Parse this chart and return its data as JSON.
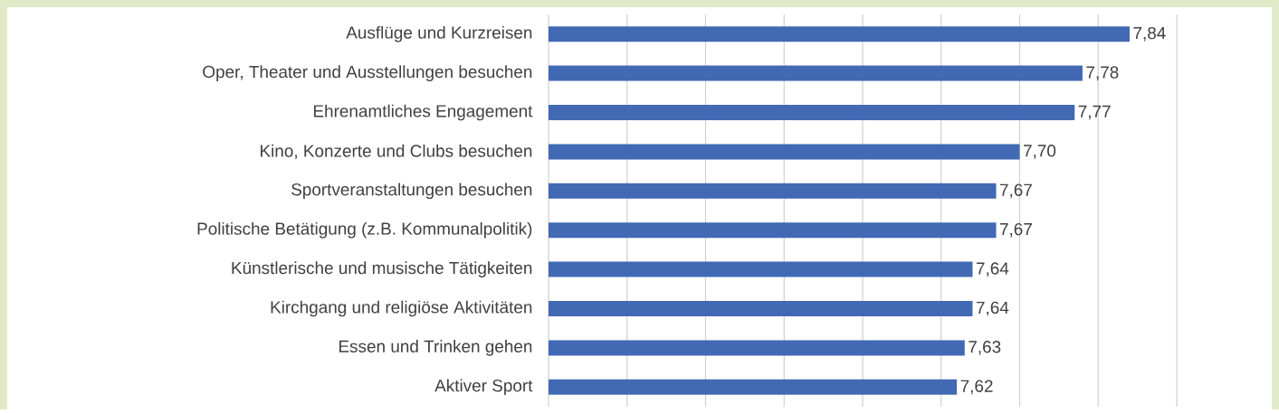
{
  "chart_data": {
    "type": "bar",
    "orientation": "horizontal",
    "categories": [
      "Ausflüge und Kurzreisen",
      "Oper, Theater und Ausstellungen besuchen",
      "Ehrenamtliches Engagement",
      "Kino, Konzerte und Clubs besuchen",
      "Sportveranstaltungen besuchen",
      "Politische Betätigung (z.B. Kommunalpolitik)",
      "Künstlerische und musische Tätigkeiten",
      "Kirchgang und religiöse Aktivitäten",
      "Essen und Trinken gehen",
      "Aktiver Sport"
    ],
    "values": [
      7.84,
      7.78,
      7.77,
      7.7,
      7.67,
      7.67,
      7.64,
      7.64,
      7.63,
      7.62
    ],
    "value_labels": [
      "7,84",
      "7,78",
      "7,77",
      "7,70",
      "7,67",
      "7,67",
      "7,64",
      "7,64",
      "7,63",
      "7,62"
    ],
    "color": "#4169b4",
    "xlim": [
      7.1,
      7.9
    ],
    "xticks": [
      {
        "value": 7.1,
        "label": null
      },
      {
        "value": 7.2,
        "label": null
      },
      {
        "value": 7.3,
        "label": null
      },
      {
        "value": 7.4,
        "label": null
      },
      {
        "value": 7.5,
        "label": null
      },
      {
        "value": 7.6,
        "label": null
      },
      {
        "value": 7.7,
        "label": null
      },
      {
        "value": 7.8,
        "label": null
      },
      {
        "value": 7.9,
        "label": null
      }
    ],
    "grid": "x",
    "tick_labels": "y"
  }
}
